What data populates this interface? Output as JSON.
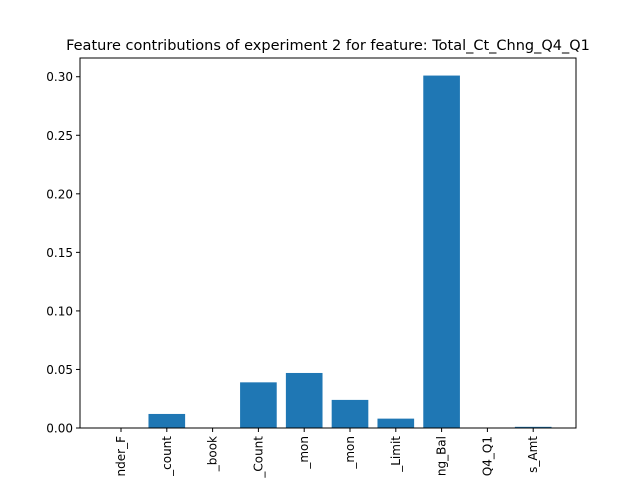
{
  "chart_data": {
    "type": "bar",
    "title": "Feature contributions of experiment 2 for feature: Total_Ct_Chng_Q4_Q1",
    "xlabel": "",
    "ylabel": "",
    "categories": [
      "nder_F",
      "_count",
      "_book",
      "_Count",
      "_mon",
      "_mon",
      "_Limit",
      "ng_Bal",
      "Q4_Q1",
      "s_Amt"
    ],
    "values": [
      0.0,
      0.012,
      0.0,
      0.039,
      0.047,
      0.024,
      0.008,
      0.301,
      0.0,
      0.001
    ],
    "ylim": [
      0,
      0.316
    ],
    "yticks": [
      0.0,
      0.05,
      0.1,
      0.15,
      0.2,
      0.25,
      0.3
    ],
    "ytick_labels": [
      "0.00",
      "0.05",
      "0.10",
      "0.15",
      "0.20",
      "0.25",
      "0.30"
    ],
    "bar_color": "#1f77b4",
    "grid": false,
    "legend": "none"
  }
}
